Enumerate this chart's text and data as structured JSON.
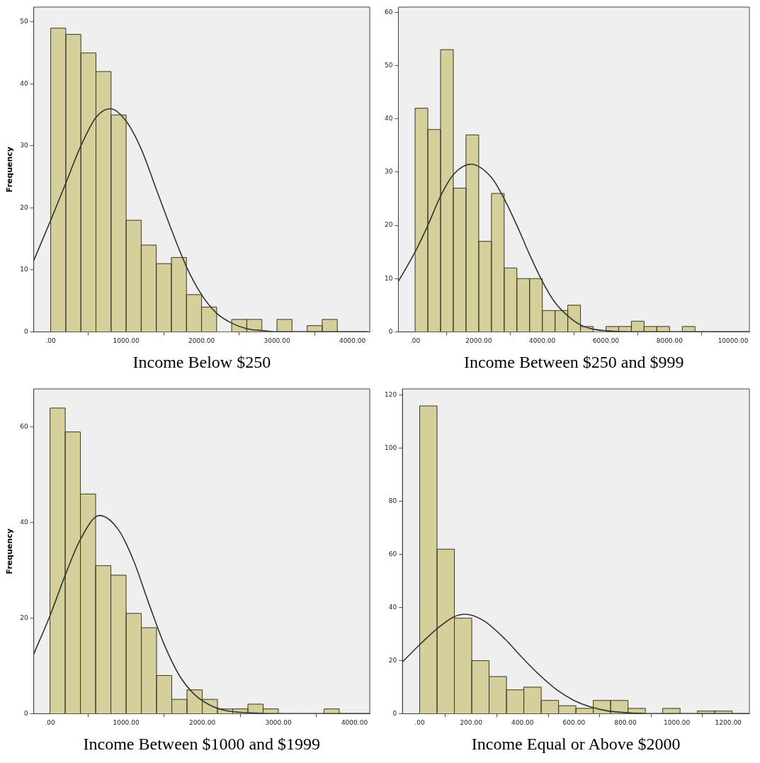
{
  "chart_data": [
    {
      "type": "histogram",
      "xlabel": "Income Below $250",
      "ylabel": "Frequency",
      "color": "#d4cf9b",
      "grid": false,
      "bins": [
        0,
        200,
        400,
        600,
        800,
        1000,
        1200,
        1400,
        1600,
        1800,
        2000,
        2200,
        2400,
        2600,
        2800,
        3000,
        3200,
        3400,
        3600,
        3800
      ],
      "values": [
        49,
        48,
        45,
        42,
        35,
        18,
        14,
        11,
        12,
        6,
        4,
        0,
        2,
        2,
        0,
        2,
        0,
        1,
        2
      ],
      "xlim": [
        -225,
        4230
      ],
      "xticks": [
        {
          "value": 0,
          "label": ".00"
        },
        {
          "value": 1000,
          "label": "1000.00"
        },
        {
          "value": 2000,
          "label": "2000.00"
        },
        {
          "value": 3000,
          "label": "3000.00"
        },
        {
          "value": 4000,
          "label": "4000.00"
        }
      ],
      "ylim": [
        0,
        52.4
      ],
      "yticks": [
        0,
        10,
        20,
        30,
        40,
        50
      ],
      "marker": "none",
      "series": [
        {
          "type": "line",
          "color": "#333333",
          "x": [
            -225,
            0,
            200,
            400,
            600,
            790,
            1000,
            1200,
            1400,
            1600,
            1800,
            2000,
            2200,
            2400,
            2600,
            2800,
            3000,
            4200
          ],
          "values": [
            11.5,
            18,
            24,
            30,
            34.6,
            36,
            34,
            29.5,
            23,
            16.5,
            10.5,
            6,
            3,
            1.4,
            0.5,
            0.2,
            0,
            0
          ]
        }
      ]
    },
    {
      "type": "histogram",
      "xlabel": "Income Between $250 and $999",
      "color": "#d4cf9b",
      "grid": false,
      "bins": [
        0,
        400,
        800,
        1200,
        1600,
        2000,
        2400,
        2800,
        3200,
        3600,
        4000,
        4400,
        4800,
        5200,
        5600,
        6000,
        6400,
        6800,
        7200,
        7600,
        8000,
        8400,
        8800
      ],
      "values": [
        42,
        38,
        53,
        27,
        37,
        17,
        26,
        12,
        10,
        10,
        4,
        4,
        5,
        1,
        0,
        1,
        1,
        2,
        1,
        1,
        0,
        1
      ],
      "xlim": [
        -526,
        10510
      ],
      "xticks": [
        {
          "value": 0,
          "label": ".00"
        },
        {
          "value": 2000,
          "label": "2000.00"
        },
        {
          "value": 4000,
          "label": "4000.00"
        },
        {
          "value": 6000,
          "label": "6000.00"
        },
        {
          "value": 8000,
          "label": "8000.00"
        },
        {
          "value": 10000,
          "label": "10000.00"
        }
      ],
      "ylim": [
        0,
        61
      ],
      "yticks": [
        0,
        10,
        20,
        30,
        40,
        50,
        60
      ],
      "marker": "none",
      "series": [
        {
          "type": "line",
          "color": "#333333",
          "x": [
            -526,
            0,
            400,
            800,
            1200,
            1750,
            2400,
            2800,
            3200,
            3600,
            4000,
            4400,
            4800,
            5200,
            5600,
            6000,
            6800,
            10500
          ],
          "values": [
            9.5,
            15,
            20,
            25.5,
            29.5,
            31.5,
            29,
            25,
            20,
            14.5,
            9.5,
            5.5,
            3,
            1.3,
            0.5,
            0.2,
            0,
            0
          ]
        }
      ]
    },
    {
      "type": "histogram",
      "xlabel": "Income Between $1000 and $1999",
      "ylabel": "Frequency",
      "color": "#d4cf9b",
      "grid": false,
      "bins": [
        0,
        200,
        400,
        600,
        800,
        1000,
        1200,
        1400,
        1600,
        1800,
        2000,
        2200,
        2400,
        2600,
        2800,
        3000,
        3200,
        3400,
        3600,
        3800
      ],
      "values": [
        64,
        59,
        46,
        31,
        29,
        21,
        18,
        8,
        3,
        5,
        3,
        1,
        1,
        2,
        1,
        0,
        0,
        0,
        1
      ],
      "xlim": [
        -213,
        4200
      ],
      "xticks": [
        {
          "value": 0,
          "label": ".00"
        },
        {
          "value": 1000,
          "label": "1000.00"
        },
        {
          "value": 2000,
          "label": "2000.00"
        },
        {
          "value": 3000,
          "label": "3000.00"
        },
        {
          "value": 4000,
          "label": "4000.00"
        }
      ],
      "ylim": [
        0,
        68
      ],
      "yticks": [
        0,
        20,
        40,
        60
      ],
      "marker": "none",
      "series": [
        {
          "type": "line",
          "color": "#333333",
          "x": [
            -213,
            0,
            200,
            400,
            650,
            900,
            1100,
            1300,
            1500,
            1700,
            1900,
            2100,
            2300,
            2600,
            3000,
            4200
          ],
          "values": [
            12.5,
            20.5,
            29,
            36.5,
            41.5,
            38.5,
            32,
            23,
            14.5,
            8,
            4,
            1.8,
            0.7,
            0.2,
            0,
            0
          ]
        }
      ]
    },
    {
      "type": "histogram",
      "xlabel": "Income Equal or Above $2000",
      "color": "#d4cf9b",
      "grid": false,
      "bins": [
        0,
        67.5,
        135,
        202.5,
        270,
        337.5,
        405,
        472.5,
        540,
        607.5,
        675,
        742.5,
        810,
        877.5,
        945,
        1012.5,
        1080,
        1147.5,
        1215
      ],
      "values": [
        116,
        62,
        36,
        20,
        14,
        9,
        10,
        5,
        3,
        2,
        5,
        5,
        2,
        0,
        2,
        0,
        1,
        1
      ],
      "xlim": [
        -67,
        1282
      ],
      "xticks": [
        {
          "value": 0,
          "label": ".00"
        },
        {
          "value": 200,
          "label": "200.00"
        },
        {
          "value": 400,
          "label": "400.00"
        },
        {
          "value": 600,
          "label": "600.00"
        },
        {
          "value": 800,
          "label": "800.00"
        },
        {
          "value": 1000,
          "label": "1000.00"
        },
        {
          "value": 1200,
          "label": "1200.00"
        }
      ],
      "ylim": [
        0,
        122.4
      ],
      "yticks": [
        0,
        20,
        40,
        60,
        80,
        100,
        120
      ],
      "marker": "none",
      "series": [
        {
          "type": "line",
          "color": "#333333",
          "x": [
            -67,
            0,
            67,
            133,
            175,
            250,
            333,
            400,
            467,
            533,
            600,
            667,
            733,
            800,
            900,
            1280
          ],
          "values": [
            19.5,
            26,
            32,
            36.5,
            37.5,
            35,
            28,
            21,
            14.5,
            9,
            5,
            2.5,
            1,
            0.4,
            0,
            0
          ]
        }
      ]
    }
  ]
}
